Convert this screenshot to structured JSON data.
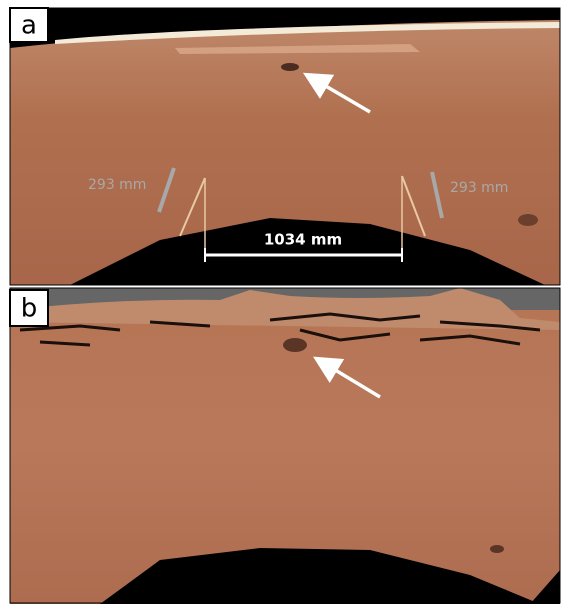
{
  "panels": [
    {
      "label": "a",
      "annotations": [
        "293 mm",
        "293 mm",
        "1034 mm"
      ]
    },
    {
      "label": "b"
    }
  ]
}
